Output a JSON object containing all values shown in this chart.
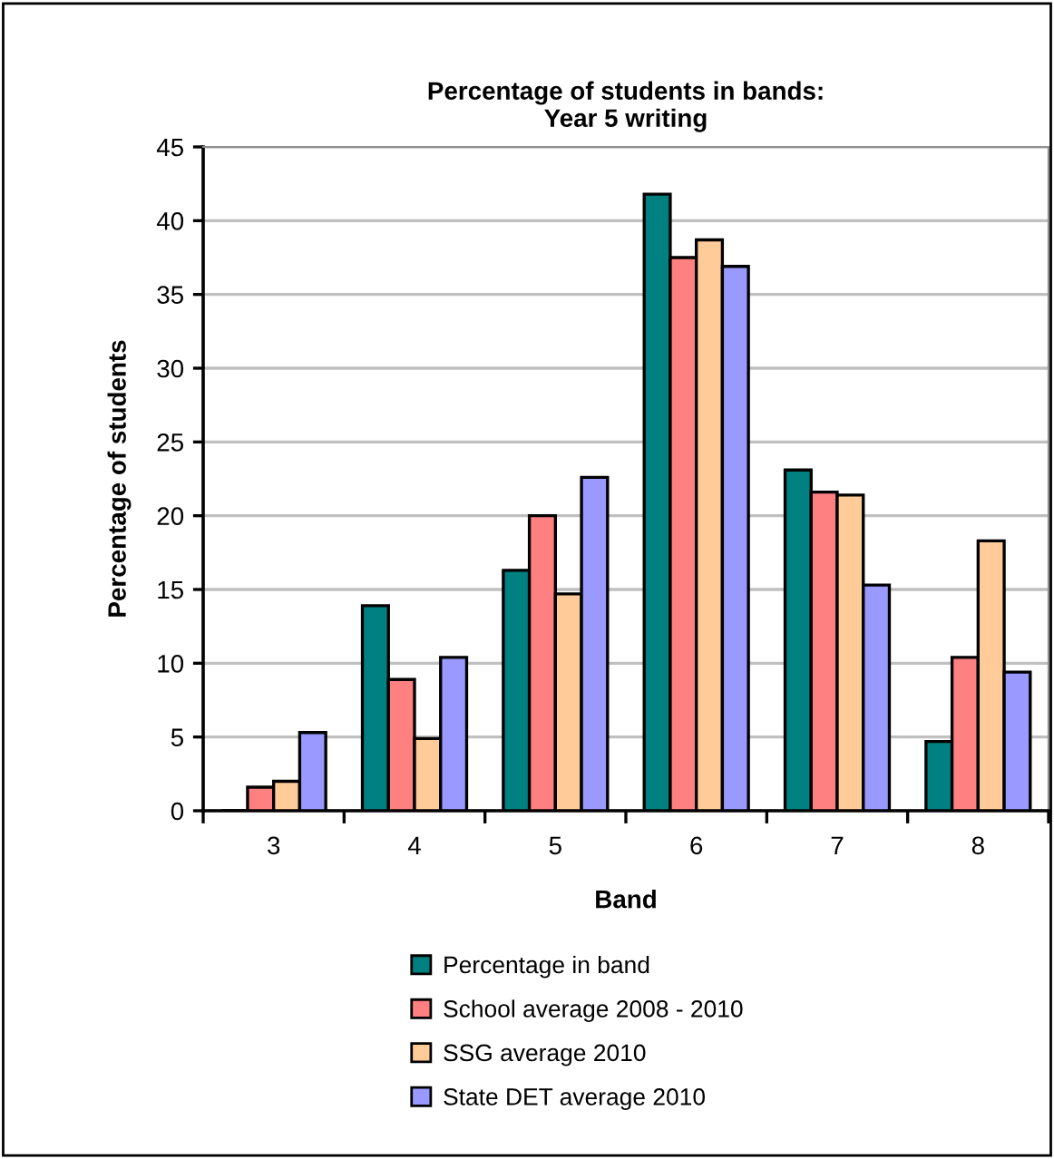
{
  "chart_data": {
    "type": "bar",
    "title": "Percentage of students in bands:\nYear 5 writing",
    "xlabel": "Band",
    "ylabel": "Percentage of students",
    "categories": [
      "3",
      "4",
      "5",
      "6",
      "7",
      "8"
    ],
    "series": [
      {
        "name": "Percentage in band",
        "color": "#008080",
        "values": [
          0,
          13.9,
          16.3,
          41.8,
          23.1,
          4.7
        ]
      },
      {
        "name": "School average 2008 - 2010",
        "color": "#ff8080",
        "values": [
          1.6,
          8.9,
          20.0,
          37.5,
          21.6,
          10.4
        ]
      },
      {
        "name": "SSG average 2010",
        "color": "#ffcc99",
        "values": [
          2.0,
          4.9,
          14.7,
          38.7,
          21.4,
          18.3
        ]
      },
      {
        "name": "State DET average 2010",
        "color": "#9999ff",
        "values": [
          5.3,
          10.4,
          22.6,
          36.9,
          15.3,
          9.4
        ]
      }
    ],
    "ylim": [
      0,
      45
    ],
    "yticks": [
      0,
      5,
      10,
      15,
      20,
      25,
      30,
      35,
      40,
      45
    ],
    "grid": "y",
    "legend": "bottom"
  }
}
